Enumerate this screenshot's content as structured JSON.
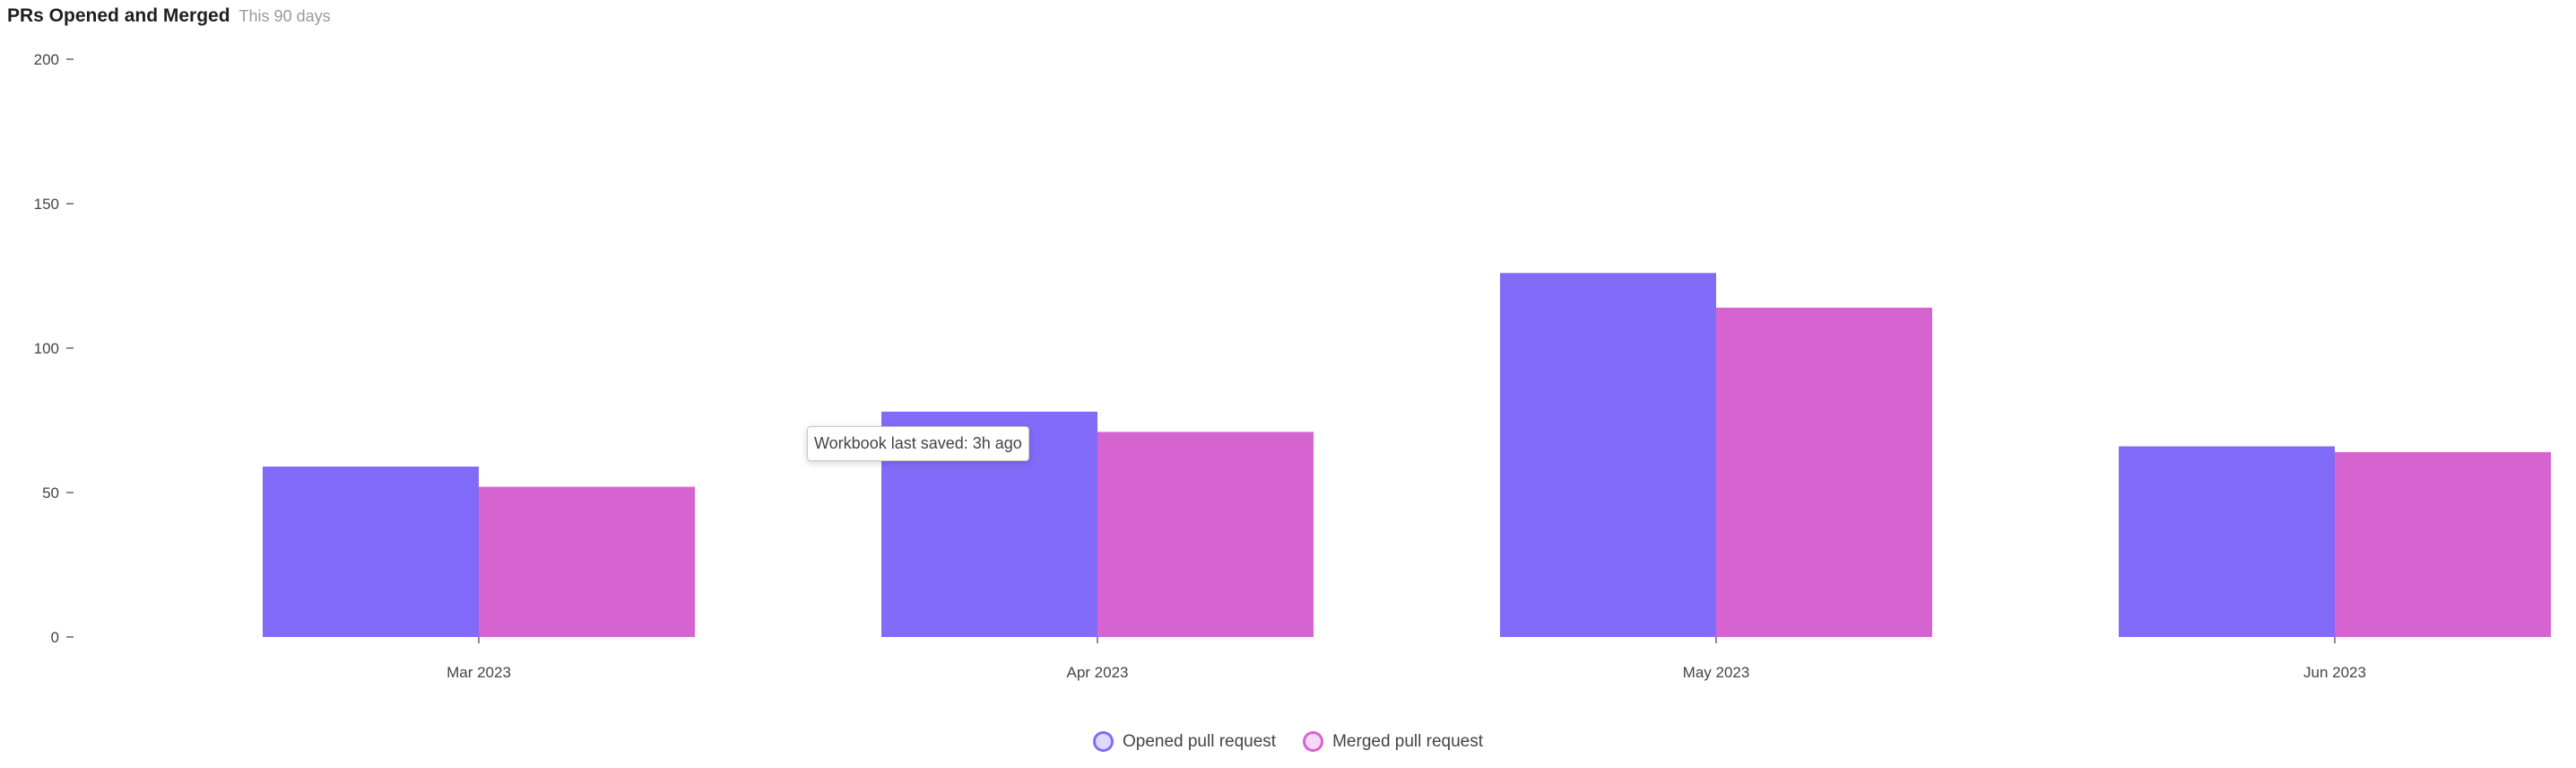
{
  "header": {
    "title": "PRs Opened and Merged",
    "subtitle": "This 90 days"
  },
  "tooltip": {
    "text": "Workbook last saved: 3h ago"
  },
  "chart_data": {
    "type": "bar",
    "categories": [
      "Mar 2023",
      "Apr 2023",
      "May 2023",
      "Jun 2023"
    ],
    "series": [
      {
        "name": "Opened pull request",
        "values": [
          59,
          78,
          126,
          66
        ],
        "color": "#836bfa",
        "legend_fill": "#ddd8fe",
        "legend_stroke": "#836bfa"
      },
      {
        "name": "Merged pull request",
        "values": [
          52,
          71,
          114,
          64
        ],
        "color": "#d664d0",
        "legend_fill": "#f6d9f4",
        "legend_stroke": "#d664d0"
      }
    ],
    "ylim": [
      0,
      200
    ],
    "yticks": [
      0,
      50,
      100,
      150,
      200
    ],
    "legend_position": "bottom-center",
    "grid": false
  }
}
